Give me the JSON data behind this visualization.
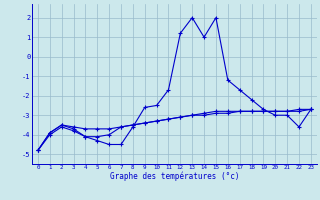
{
  "xlabel": "Graphe des températures (°c)",
  "bg_color": "#cce8ec",
  "line_color": "#0000cc",
  "grid_color": "#99bbcc",
  "hours": [
    0,
    1,
    2,
    3,
    4,
    5,
    6,
    7,
    8,
    9,
    10,
    11,
    12,
    13,
    14,
    15,
    16,
    17,
    18,
    19,
    20,
    21,
    22,
    23
  ],
  "temp_main": [
    -4.8,
    -3.9,
    -3.5,
    -3.7,
    -4.1,
    -4.3,
    -4.5,
    -4.5,
    -3.6,
    -2.6,
    -2.5,
    -1.7,
    1.2,
    2.0,
    1.0,
    2.0,
    -1.2,
    -1.7,
    -2.2,
    -2.7,
    -3.0,
    -3.0,
    -3.6,
    -2.7
  ],
  "temp_low": [
    -4.8,
    -4.0,
    -3.6,
    -3.8,
    -4.1,
    -4.1,
    -4.0,
    -3.6,
    -3.5,
    -3.4,
    -3.3,
    -3.2,
    -3.1,
    -3.0,
    -3.0,
    -2.9,
    -2.9,
    -2.8,
    -2.8,
    -2.8,
    -2.8,
    -2.8,
    -2.7,
    -2.7
  ],
  "temp_mid": [
    -4.8,
    -3.9,
    -3.5,
    -3.6,
    -3.7,
    -3.7,
    -3.7,
    -3.6,
    -3.5,
    -3.4,
    -3.3,
    -3.2,
    -3.1,
    -3.0,
    -2.9,
    -2.8,
    -2.8,
    -2.8,
    -2.8,
    -2.8,
    -2.8,
    -2.8,
    -2.8,
    -2.7
  ],
  "ylim": [
    -5.5,
    2.7
  ],
  "yticks": [
    -5,
    -4,
    -3,
    -2,
    -1,
    0,
    1,
    2
  ]
}
